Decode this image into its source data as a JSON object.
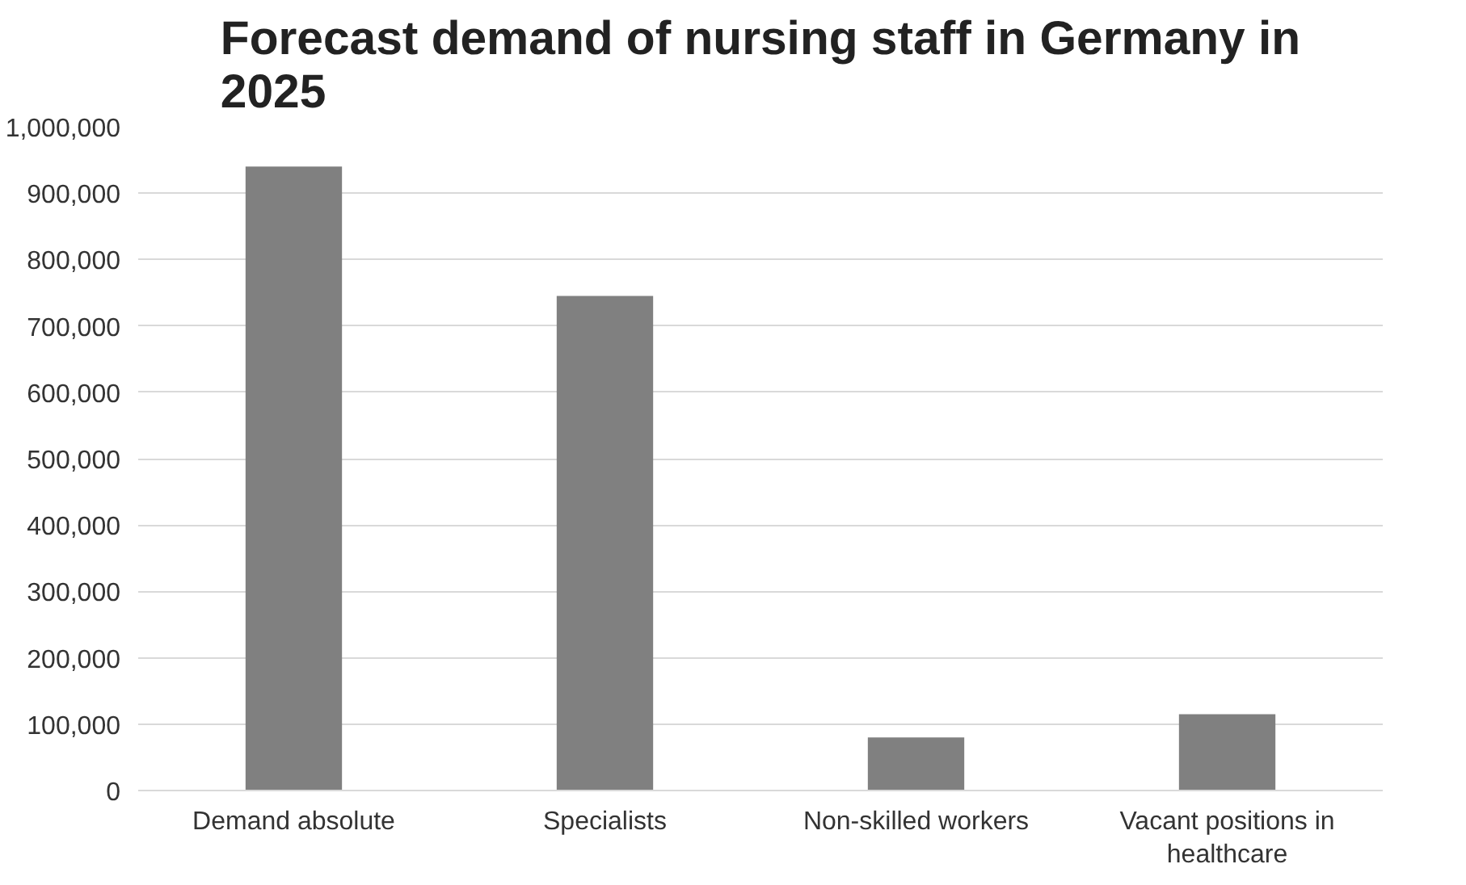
{
  "chart_data": {
    "type": "bar",
    "title": "Forecast demand of nursing staff in Germany in 2025",
    "categories": [
      "Demand absolute",
      "Specialists",
      "Non-skilled workers",
      "Vacant positions in healthcare"
    ],
    "values": [
      940000,
      745000,
      80000,
      115000
    ],
    "color": "#808080",
    "ylim": [
      0,
      1000000
    ],
    "yticks": [
      {
        "value": 0,
        "label": "0"
      },
      {
        "value": 100000,
        "label": "100,000"
      },
      {
        "value": 200000,
        "label": "200,000"
      },
      {
        "value": 300000,
        "label": "300,000"
      },
      {
        "value": 400000,
        "label": "400,000"
      },
      {
        "value": 500000,
        "label": "500,000"
      },
      {
        "value": 600000,
        "label": "600,000"
      },
      {
        "value": 700000,
        "label": "700,000"
      },
      {
        "value": 800000,
        "label": "800,000"
      },
      {
        "value": 900000,
        "label": "900,000"
      },
      {
        "value": 1000000,
        "label": "1,000,000"
      }
    ],
    "grid": "y"
  }
}
